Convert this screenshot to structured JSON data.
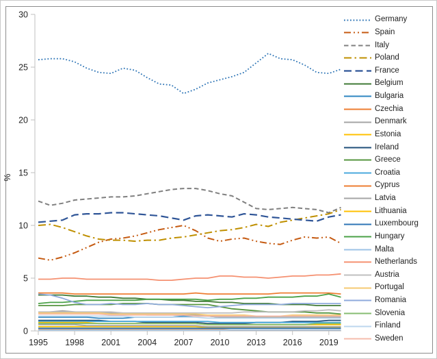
{
  "chart_data": {
    "type": "line",
    "title": "",
    "xlabel": "",
    "ylabel": "%",
    "xlim": [
      1995,
      2020
    ],
    "ylim": [
      0,
      30
    ],
    "grid": false,
    "legend_position": "right",
    "years": [
      1995,
      1996,
      1997,
      1998,
      1999,
      2000,
      2001,
      2002,
      2003,
      2004,
      2005,
      2006,
      2007,
      2008,
      2009,
      2010,
      2011,
      2012,
      2013,
      2014,
      2015,
      2016,
      2017,
      2018,
      2019,
      2020
    ],
    "x_tick_labels": [
      "1995",
      "1998",
      "2001",
      "2004",
      "2007",
      "2010",
      "2013",
      "2016",
      "2019"
    ],
    "x_tick_years": [
      1995,
      1998,
      2001,
      2004,
      2007,
      2010,
      2013,
      2016,
      2019
    ],
    "y_tick_labels": [
      "0",
      "5",
      "10",
      "15",
      "20",
      "25",
      "30"
    ],
    "y_tick_values": [
      0,
      5,
      10,
      15,
      20,
      25,
      30
    ],
    "series": [
      {
        "name": "Germany",
        "color": "#2E75B6",
        "dash": "dotted",
        "width": 1.8,
        "values": [
          25.7,
          25.8,
          25.8,
          25.5,
          24.9,
          24.5,
          24.4,
          24.9,
          24.7,
          24.0,
          23.4,
          23.3,
          22.5,
          22.9,
          23.5,
          23.8,
          24.1,
          24.5,
          25.4,
          26.3,
          25.8,
          25.7,
          25.2,
          24.5,
          24.4,
          24.8
        ]
      },
      {
        "name": "Spain",
        "color": "#C55A11",
        "dash": "dash-dot-dot",
        "width": 2,
        "values": [
          6.9,
          6.7,
          7.0,
          7.4,
          7.9,
          8.4,
          8.7,
          8.8,
          9.0,
          9.3,
          9.6,
          9.8,
          10.0,
          9.5,
          8.8,
          8.5,
          8.7,
          8.8,
          8.5,
          8.3,
          8.2,
          8.6,
          8.9,
          8.8,
          8.9,
          8.3
        ]
      },
      {
        "name": "Italy",
        "color": "#7F7F7F",
        "dash": "dash",
        "width": 2,
        "values": [
          12.3,
          11.9,
          12.1,
          12.4,
          12.5,
          12.6,
          12.7,
          12.7,
          12.8,
          13.0,
          13.2,
          13.4,
          13.5,
          13.5,
          13.3,
          13.0,
          12.8,
          12.2,
          11.6,
          11.5,
          11.6,
          11.7,
          11.6,
          11.5,
          11.2,
          11.7
        ]
      },
      {
        "name": "Poland",
        "color": "#BF8F00",
        "dash": "dash-dot",
        "width": 2,
        "values": [
          10.0,
          10.1,
          9.8,
          9.4,
          9.0,
          8.7,
          8.6,
          8.6,
          8.5,
          8.6,
          8.6,
          8.8,
          8.9,
          9.1,
          9.3,
          9.5,
          9.6,
          9.8,
          10.1,
          9.9,
          10.3,
          10.5,
          10.7,
          10.9,
          11.1,
          11.5
        ]
      },
      {
        "name": "France",
        "color": "#2F5597",
        "dash": "long-dash",
        "width": 2.2,
        "values": [
          10.3,
          10.4,
          10.5,
          11.0,
          11.1,
          11.1,
          11.2,
          11.2,
          11.1,
          11.0,
          10.9,
          10.7,
          10.5,
          10.9,
          11.0,
          10.9,
          10.8,
          11.1,
          11.0,
          10.8,
          10.7,
          10.6,
          10.5,
          10.4,
          10.8,
          11.0
        ]
      },
      {
        "name": "Belgium",
        "color": "#3F7A35",
        "dash": "solid",
        "width": 1.8,
        "values": [
          3.4,
          3.4,
          3.4,
          3.3,
          3.3,
          3.2,
          3.2,
          3.1,
          3.1,
          3.0,
          3.0,
          2.9,
          2.9,
          2.8,
          2.8,
          2.7,
          2.7,
          2.6,
          2.6,
          2.6,
          2.5,
          2.5,
          2.5,
          2.4,
          2.4,
          2.4
        ]
      },
      {
        "name": "Bulgaria",
        "color": "#2E86C1",
        "dash": "solid",
        "width": 1.8,
        "values": [
          1.3,
          1.3,
          1.3,
          1.3,
          1.3,
          1.2,
          1.2,
          1.2,
          1.3,
          1.3,
          1.3,
          1.3,
          1.4,
          1.4,
          1.4,
          1.3,
          1.3,
          1.3,
          1.3,
          1.4,
          1.4,
          1.4,
          1.4,
          1.4,
          1.4,
          1.3
        ]
      },
      {
        "name": "Czechia",
        "color": "#ED7D31",
        "dash": "solid",
        "width": 1.8,
        "values": [
          3.6,
          3.6,
          3.6,
          3.5,
          3.5,
          3.5,
          3.5,
          3.5,
          3.5,
          3.5,
          3.5,
          3.5,
          3.5,
          3.6,
          3.5,
          3.5,
          3.5,
          3.5,
          3.5,
          3.5,
          3.6,
          3.6,
          3.6,
          3.6,
          3.6,
          3.5
        ]
      },
      {
        "name": "Denmark",
        "color": "#A5A5A5",
        "dash": "solid",
        "width": 1.8,
        "values": [
          1.7,
          1.8,
          1.9,
          1.8,
          1.7,
          1.7,
          1.7,
          1.6,
          1.6,
          1.5,
          1.5,
          1.5,
          1.5,
          1.5,
          1.4,
          1.3,
          1.3,
          1.3,
          1.3,
          1.3,
          1.3,
          1.3,
          1.3,
          1.3,
          1.3,
          1.3
        ]
      },
      {
        "name": "Estonia",
        "color": "#FFC000",
        "dash": "solid",
        "width": 1.8,
        "values": [
          0.4,
          0.4,
          0.4,
          0.4,
          0.4,
          0.4,
          0.4,
          0.4,
          0.4,
          0.4,
          0.4,
          0.4,
          0.4,
          0.4,
          0.3,
          0.3,
          0.3,
          0.3,
          0.3,
          0.3,
          0.3,
          0.3,
          0.3,
          0.3,
          0.3,
          0.3
        ]
      },
      {
        "name": "Ireland",
        "color": "#1F4E79",
        "dash": "solid",
        "width": 1.8,
        "values": [
          1.0,
          1.0,
          1.0,
          1.0,
          1.0,
          1.0,
          0.9,
          0.9,
          0.9,
          0.8,
          0.8,
          0.8,
          0.8,
          0.8,
          0.7,
          0.7,
          0.7,
          0.7,
          0.8,
          0.8,
          0.8,
          0.9,
          0.9,
          0.9,
          1.0,
          1.0
        ]
      },
      {
        "name": "Greece",
        "color": "#55953F",
        "dash": "solid",
        "width": 1.8,
        "values": [
          2.4,
          2.4,
          2.4,
          2.5,
          2.5,
          2.5,
          2.5,
          2.6,
          2.6,
          2.6,
          2.5,
          2.5,
          2.5,
          2.5,
          2.5,
          2.3,
          2.1,
          2.0,
          1.9,
          1.8,
          1.8,
          1.8,
          1.8,
          1.7,
          1.7,
          1.6
        ]
      },
      {
        "name": "Croatia",
        "color": "#4AA9DD",
        "dash": "solid",
        "width": 1.8,
        "values": [
          0.9,
          0.9,
          0.9,
          0.9,
          0.9,
          0.9,
          0.9,
          0.9,
          0.9,
          0.9,
          0.9,
          0.9,
          0.9,
          0.9,
          0.9,
          0.8,
          0.8,
          0.8,
          0.8,
          0.8,
          0.8,
          0.8,
          0.8,
          0.8,
          0.8,
          0.8
        ]
      },
      {
        "name": "Cyprus",
        "color": "#ED7D31",
        "dash": "solid",
        "width": 1.8,
        "values": [
          0.15,
          0.15,
          0.15,
          0.15,
          0.15,
          0.15,
          0.15,
          0.15,
          0.15,
          0.15,
          0.15,
          0.15,
          0.15,
          0.15,
          0.15,
          0.15,
          0.1,
          0.1,
          0.1,
          0.1,
          0.1,
          0.1,
          0.1,
          0.1,
          0.1,
          0.1
        ]
      },
      {
        "name": "Latvia",
        "color": "#A5A5A5",
        "dash": "solid",
        "width": 1.8,
        "values": [
          0.6,
          0.6,
          0.6,
          0.6,
          0.5,
          0.5,
          0.5,
          0.5,
          0.5,
          0.5,
          0.5,
          0.5,
          0.5,
          0.5,
          0.4,
          0.4,
          0.4,
          0.4,
          0.4,
          0.4,
          0.4,
          0.4,
          0.4,
          0.4,
          0.4,
          0.4
        ]
      },
      {
        "name": "Lithuania",
        "color": "#FFC000",
        "dash": "solid",
        "width": 1.8,
        "values": [
          0.8,
          0.8,
          0.8,
          0.8,
          0.8,
          0.7,
          0.7,
          0.7,
          0.7,
          0.7,
          0.7,
          0.7,
          0.7,
          0.7,
          0.6,
          0.6,
          0.6,
          0.6,
          0.6,
          0.6,
          0.6,
          0.6,
          0.6,
          0.6,
          0.6,
          0.6
        ]
      },
      {
        "name": "Luxembourg",
        "color": "#2E75B6",
        "dash": "solid",
        "width": 1.8,
        "values": [
          0.25,
          0.25,
          0.25,
          0.25,
          0.25,
          0.25,
          0.25,
          0.25,
          0.25,
          0.25,
          0.25,
          0.25,
          0.25,
          0.25,
          0.25,
          0.25,
          0.25,
          0.25,
          0.25,
          0.25,
          0.25,
          0.25,
          0.25,
          0.25,
          0.25,
          0.25
        ]
      },
      {
        "name": "Hungary",
        "color": "#4AA147",
        "dash": "solid",
        "width": 1.8,
        "values": [
          2.6,
          2.7,
          2.7,
          2.8,
          2.9,
          2.9,
          2.9,
          2.9,
          2.9,
          3.0,
          3.0,
          3.0,
          3.0,
          3.0,
          2.9,
          3.0,
          3.0,
          3.1,
          3.1,
          3.2,
          3.2,
          3.2,
          3.3,
          3.3,
          3.5,
          3.2
        ]
      },
      {
        "name": "Malta",
        "color": "#9DC3E6",
        "dash": "solid",
        "width": 1.8,
        "values": [
          0.1,
          0.1,
          0.1,
          0.1,
          0.1,
          0.1,
          0.1,
          0.1,
          0.1,
          0.1,
          0.1,
          0.1,
          0.1,
          0.1,
          0.1,
          0.1,
          0.1,
          0.1,
          0.1,
          0.1,
          0.1,
          0.1,
          0.1,
          0.1,
          0.1,
          0.1
        ]
      },
      {
        "name": "Netherlands",
        "color": "#F59070",
        "dash": "solid",
        "width": 1.8,
        "values": [
          4.9,
          4.9,
          5.0,
          5.0,
          4.9,
          4.9,
          4.9,
          4.9,
          4.9,
          4.9,
          4.8,
          4.8,
          4.9,
          5.0,
          5.0,
          5.2,
          5.2,
          5.1,
          5.1,
          5.0,
          5.1,
          5.2,
          5.2,
          5.3,
          5.3,
          5.4
        ]
      },
      {
        "name": "Austria",
        "color": "#BFBFBF",
        "dash": "solid",
        "width": 1.8,
        "values": [
          1.8,
          1.8,
          1.8,
          1.8,
          1.8,
          1.8,
          1.8,
          1.7,
          1.7,
          1.7,
          1.7,
          1.7,
          1.7,
          1.7,
          1.7,
          1.7,
          1.7,
          1.8,
          1.8,
          1.8,
          1.8,
          1.8,
          1.9,
          1.9,
          2.0,
          1.9
        ]
      },
      {
        "name": "Portugal",
        "color": "#F5C971",
        "dash": "solid",
        "width": 1.8,
        "values": [
          1.7,
          1.7,
          1.7,
          1.7,
          1.7,
          1.7,
          1.6,
          1.6,
          1.6,
          1.6,
          1.6,
          1.6,
          1.6,
          1.6,
          1.5,
          1.5,
          1.5,
          1.5,
          1.4,
          1.4,
          1.4,
          1.5,
          1.5,
          1.5,
          1.5,
          1.5
        ]
      },
      {
        "name": "Romania",
        "color": "#8FAADC",
        "dash": "solid",
        "width": 1.8,
        "values": [
          3.5,
          3.4,
          3.1,
          2.7,
          2.5,
          2.5,
          2.6,
          2.5,
          2.5,
          2.6,
          2.5,
          2.5,
          2.4,
          2.3,
          2.2,
          2.3,
          2.4,
          2.5,
          2.5,
          2.5,
          2.5,
          2.6,
          2.6,
          2.6,
          2.6,
          2.6
        ]
      },
      {
        "name": "Slovenia",
        "color": "#86BC72",
        "dash": "solid",
        "width": 1.8,
        "values": [
          0.7,
          0.7,
          0.7,
          0.7,
          0.7,
          0.7,
          0.7,
          0.7,
          0.7,
          0.7,
          0.7,
          0.7,
          0.7,
          0.7,
          0.6,
          0.6,
          0.6,
          0.6,
          0.6,
          0.6,
          0.6,
          0.6,
          0.6,
          0.7,
          0.7,
          0.7
        ]
      },
      {
        "name": "Finland",
        "color": "#BDD7EE",
        "dash": "solid",
        "width": 1.8,
        "values": [
          1.4,
          1.4,
          1.4,
          1.4,
          1.4,
          1.4,
          1.4,
          1.4,
          1.3,
          1.3,
          1.3,
          1.3,
          1.3,
          1.3,
          1.2,
          1.2,
          1.2,
          1.2,
          1.2,
          1.2,
          1.2,
          1.2,
          1.2,
          1.2,
          1.2,
          1.2
        ]
      },
      {
        "name": "Sweden",
        "color": "#F6BCAC",
        "dash": "solid",
        "width": 1.8,
        "values": [
          1.6,
          1.6,
          1.6,
          1.6,
          1.6,
          1.6,
          1.5,
          1.5,
          1.5,
          1.5,
          1.5,
          1.5,
          1.5,
          1.4,
          1.4,
          1.4,
          1.4,
          1.4,
          1.4,
          1.4,
          1.4,
          1.4,
          1.4,
          1.4,
          1.4,
          1.4
        ]
      }
    ]
  }
}
